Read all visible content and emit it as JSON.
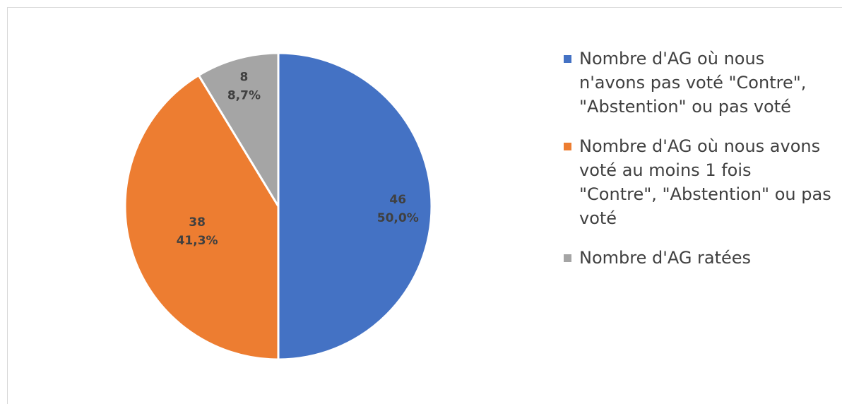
{
  "chart_data": {
    "type": "pie",
    "title": "",
    "slices": [
      {
        "label": "Nombre d'AG où nous n'avons pas voté \"Contre\", \"Abstention\" ou pas voté",
        "value": 46,
        "percent": "50,0%",
        "color": "#4472c4"
      },
      {
        "label": "Nombre d'AG où nous avons voté au moins 1 fois \"Contre\", \"Abstention\" ou pas voté",
        "value": 38,
        "percent": "41,3%",
        "color": "#ed7d31"
      },
      {
        "label": "Nombre d'AG ratées",
        "value": 8,
        "percent": "8,7%",
        "color": "#a5a5a5"
      }
    ],
    "legend_position": "right",
    "data_labels": "value and percent"
  },
  "legend": {
    "items": [
      {
        "label": "Nombre d'AG où nous\nn'avons pas voté \"Contre\",\n\"Abstention\" ou pas voté",
        "color": "#4472c4"
      },
      {
        "label": "Nombre d'AG où nous avons\nvoté au moins 1 fois\n\"Contre\", \"Abstention\" ou pas\nvoté",
        "color": "#ed7d31"
      },
      {
        "label": "Nombre d'AG ratées",
        "color": "#a5a5a5"
      }
    ]
  }
}
